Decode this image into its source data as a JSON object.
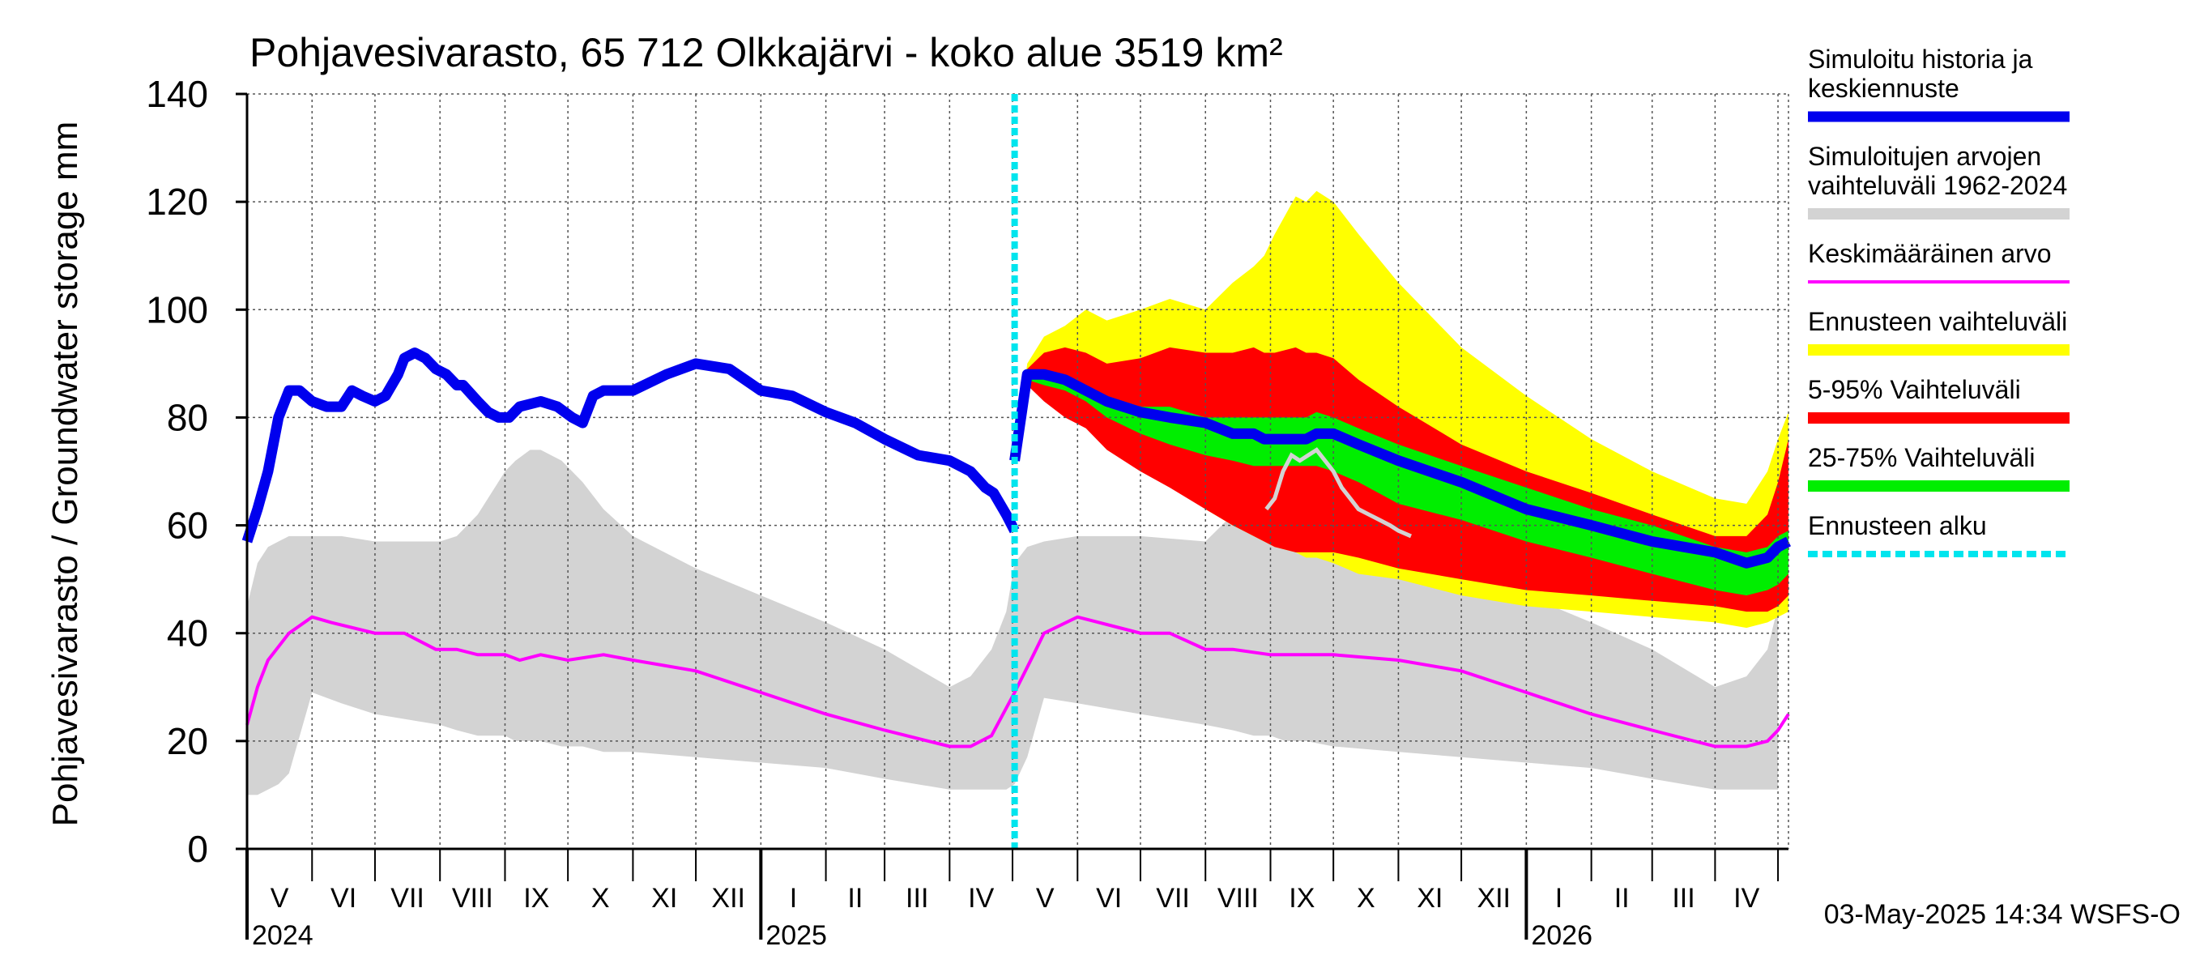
{
  "chart_data": {
    "type": "area",
    "title": "Pohjavesivarasto, 65 712 Olkkajärvi - koko alue 3519 km²",
    "ylabel": "Pohjavesivarasto / Groundwater storage   mm",
    "ylim": [
      0,
      140
    ],
    "yticks": [
      0,
      20,
      40,
      60,
      80,
      100,
      120,
      140
    ],
    "xlim_days": [
      0,
      735
    ],
    "forecast_start_day": 366,
    "months": [
      {
        "label": "V",
        "start": 0
      },
      {
        "label": "VI",
        "start": 31
      },
      {
        "label": "VII",
        "start": 61
      },
      {
        "label": "VIII",
        "start": 92
      },
      {
        "label": "IX",
        "start": 123
      },
      {
        "label": "X",
        "start": 153
      },
      {
        "label": "XI",
        "start": 184
      },
      {
        "label": "XII",
        "start": 214
      },
      {
        "label": "I",
        "start": 245
      },
      {
        "label": "II",
        "start": 276
      },
      {
        "label": "III",
        "start": 304
      },
      {
        "label": "IV",
        "start": 335
      },
      {
        "label": "V",
        "start": 365
      },
      {
        "label": "VI",
        "start": 396
      },
      {
        "label": "VII",
        "start": 426
      },
      {
        "label": "VIII",
        "start": 457
      },
      {
        "label": "IX",
        "start": 488
      },
      {
        "label": "X",
        "start": 518
      },
      {
        "label": "XI",
        "start": 549
      },
      {
        "label": "XII",
        "start": 579
      },
      {
        "label": "I",
        "start": 610
      },
      {
        "label": "II",
        "start": 641
      },
      {
        "label": "III",
        "start": 670
      },
      {
        "label": "IV",
        "start": 700
      }
    ],
    "month_end": 730,
    "years": [
      {
        "label": "2024",
        "day": 0
      },
      {
        "label": "2025",
        "day": 245
      },
      {
        "label": "2026",
        "day": 610
      }
    ],
    "sim_range": {
      "x": [
        0,
        5,
        10,
        15,
        20,
        31,
        45,
        61,
        92,
        100,
        110,
        123,
        128,
        135,
        140,
        150,
        160,
        170,
        184,
        214,
        245,
        276,
        304,
        335,
        345,
        355,
        362,
        366,
        372,
        380,
        396,
        426,
        457,
        470,
        480,
        488,
        495,
        505,
        518,
        549,
        579,
        610,
        641,
        670,
        700,
        715,
        725,
        730
      ],
      "upper": [
        45,
        53,
        56,
        57,
        58,
        58,
        58,
        57,
        57,
        58,
        62,
        70,
        72,
        74,
        74,
        72,
        68,
        63,
        58,
        52,
        47,
        42,
        37,
        30,
        32,
        37,
        44,
        53,
        56,
        57,
        58,
        58,
        57,
        62,
        63,
        64,
        63,
        61,
        59,
        55,
        51,
        47,
        42,
        37,
        30,
        32,
        37,
        45
      ],
      "lower": [
        10,
        10,
        11,
        12,
        14,
        29,
        27,
        25,
        23,
        22,
        21,
        21,
        20,
        20,
        20,
        19,
        19,
        18,
        18,
        17,
        16,
        15,
        13,
        11,
        11,
        11,
        11,
        12,
        17,
        28,
        27,
        25,
        23,
        22,
        21,
        21,
        20,
        20,
        19,
        18,
        17,
        16,
        15,
        13,
        11,
        11,
        11,
        11
      ]
    },
    "mean": {
      "x": [
        0,
        5,
        10,
        20,
        31,
        40,
        61,
        75,
        90,
        100,
        110,
        123,
        130,
        140,
        153,
        170,
        184,
        214,
        245,
        276,
        304,
        335,
        345,
        355,
        366,
        375,
        380,
        396,
        426,
        440,
        457,
        470,
        488,
        500,
        518,
        549,
        579,
        610,
        641,
        670,
        700,
        715,
        725,
        730,
        735
      ],
      "values": [
        23,
        30,
        35,
        40,
        43,
        42,
        40,
        40,
        37,
        37,
        36,
        36,
        35,
        36,
        35,
        36,
        35,
        33,
        29,
        25,
        22,
        19,
        19,
        21,
        29,
        36,
        40,
        43,
        40,
        40,
        37,
        37,
        36,
        36,
        36,
        35,
        33,
        29,
        25,
        22,
        19,
        19,
        20,
        22,
        25
      ]
    },
    "history": {
      "x": [
        0,
        5,
        10,
        15,
        20,
        25,
        31,
        38,
        45,
        50,
        55,
        61,
        66,
        72,
        75,
        80,
        85,
        90,
        95,
        100,
        103,
        110,
        115,
        120,
        125,
        130,
        140,
        148,
        155,
        160,
        165,
        170,
        184,
        200,
        214,
        230,
        245,
        260,
        276,
        290,
        304,
        320,
        335,
        345,
        352,
        356,
        362,
        366
      ],
      "values": [
        57,
        63,
        70,
        80,
        85,
        85,
        83,
        82,
        82,
        85,
        84,
        83,
        84,
        88,
        91,
        92,
        91,
        89,
        88,
        86,
        86,
        83,
        81,
        80,
        80,
        82,
        83,
        82,
        80,
        79,
        84,
        85,
        85,
        88,
        90,
        89,
        85,
        84,
        81,
        79,
        76,
        73,
        72,
        70,
        67,
        66,
        62,
        59
      ]
    },
    "historic_overlay": {
      "x": [
        486,
        490,
        494,
        498,
        502,
        506,
        510,
        514,
        518,
        522,
        526,
        530,
        535,
        540,
        545,
        549,
        555
      ],
      "values": [
        63,
        65,
        70,
        73,
        72,
        73,
        74,
        72,
        70,
        67,
        65,
        63,
        62,
        61,
        60,
        59,
        58
      ]
    },
    "forecast": {
      "x": [
        366,
        372,
        380,
        390,
        400,
        410,
        426,
        440,
        457,
        470,
        480,
        485,
        490,
        500,
        505,
        510,
        518,
        530,
        549,
        579,
        610,
        641,
        670,
        700,
        715,
        725,
        730,
        735
      ],
      "range_upper": [
        72,
        90,
        95,
        97,
        100,
        98,
        100,
        102,
        100,
        105,
        108,
        110,
        114,
        121,
        120,
        122,
        120,
        114,
        105,
        93,
        84,
        76,
        70,
        65,
        64,
        70,
        76,
        81
      ],
      "range_lower": [
        72,
        86,
        84,
        82,
        79,
        76,
        72,
        68,
        63,
        60,
        58,
        57,
        56,
        55,
        54,
        54,
        53,
        51,
        50,
        47,
        45,
        44,
        43,
        42,
        41,
        42,
        43,
        44
      ],
      "p95": [
        72,
        89,
        92,
        93,
        92,
        90,
        91,
        93,
        92,
        92,
        93,
        92,
        92,
        93,
        92,
        92,
        91,
        87,
        82,
        75,
        70,
        66,
        62,
        58,
        58,
        62,
        68,
        76
      ],
      "p5": [
        72,
        86,
        83,
        80,
        78,
        74,
        70,
        67,
        63,
        60,
        58,
        57,
        56,
        55,
        55,
        55,
        55,
        54,
        52,
        50,
        48,
        47,
        46,
        45,
        44,
        44,
        45,
        47
      ],
      "p75": [
        72,
        89,
        88,
        87,
        85,
        84,
        82,
        82,
        80,
        80,
        80,
        80,
        80,
        80,
        80,
        81,
        80,
        78,
        75,
        71,
        67,
        63,
        60,
        56,
        55,
        56,
        58,
        59
      ],
      "p25": [
        72,
        87,
        86,
        85,
        83,
        80,
        77,
        75,
        73,
        72,
        71,
        71,
        71,
        71,
        71,
        71,
        70,
        68,
        64,
        61,
        57,
        54,
        51,
        48,
        47,
        48,
        49,
        51
      ],
      "median": [
        72,
        88,
        88,
        87,
        85,
        83,
        81,
        80,
        79,
        77,
        77,
        76,
        76,
        76,
        76,
        77,
        77,
        75,
        72,
        68,
        63,
        60,
        57,
        55,
        53,
        54,
        56,
        57
      ]
    },
    "legend": [
      {
        "label": "Simuloitu historia ja keskiennuste",
        "lines": [
          "Simuloitu historia ja",
          "keskiennuste"
        ],
        "color": "#0000ee",
        "style": "thick"
      },
      {
        "label": "Simuloitujen arvojen vaihteluväli 1962-2024",
        "lines": [
          "Simuloitujen arvojen",
          "vaihteluväli 1962-2024"
        ],
        "color": "#d3d3d3",
        "style": "band"
      },
      {
        "label": "Keskimääräinen arvo",
        "lines": [
          "Keskimääräinen arvo"
        ],
        "color": "#ff00ff",
        "style": "thin"
      },
      {
        "label": "Ennusteen vaihteluväli",
        "lines": [
          "Ennusteen vaihteluväli"
        ],
        "color": "#ffff00",
        "style": "band"
      },
      {
        "label": "5-95% Vaihteluväli",
        "lines": [
          "5-95% Vaihteluväli"
        ],
        "color": "#ff0000",
        "style": "band"
      },
      {
        "label": "25-75% Vaihteluväli",
        "lines": [
          "25-75% Vaihteluväli"
        ],
        "color": "#00ee00",
        "style": "band"
      },
      {
        "label": "Ennusteen alku",
        "lines": [
          "Ennusteen alku"
        ],
        "color": "#00e5ee",
        "style": "dashed"
      }
    ],
    "footer": "03-May-2025 14:34 WSFS-O"
  }
}
